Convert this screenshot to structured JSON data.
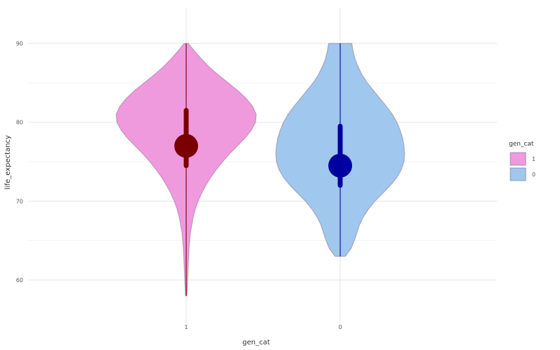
{
  "chart_data": {
    "type": "violin",
    "xlabel": "gen_cat",
    "ylabel": "life_expectancy",
    "categories": [
      "1",
      "0"
    ],
    "y_ticks": [
      60,
      70,
      80,
      90
    ],
    "ylim": [
      57,
      93
    ],
    "grid": true,
    "legend": {
      "title": "gen_cat",
      "position": "right",
      "entries": [
        "1",
        "0"
      ]
    },
    "series": [
      {
        "category": "1",
        "fill": "#f09ade",
        "point_color": "#7a0000",
        "max": 90,
        "min": 58,
        "point": 77,
        "interval": [
          74.5,
          81.5
        ],
        "density_half_width": [
          [
            90,
            0.03
          ],
          [
            89,
            0.12
          ],
          [
            88,
            0.22
          ],
          [
            87,
            0.33
          ],
          [
            86,
            0.46
          ],
          [
            85,
            0.6
          ],
          [
            84,
            0.74
          ],
          [
            83,
            0.86
          ],
          [
            82,
            0.95
          ],
          [
            81,
            1.0
          ],
          [
            80,
            0.99
          ],
          [
            79,
            0.93
          ],
          [
            78,
            0.84
          ],
          [
            77,
            0.73
          ],
          [
            76,
            0.62
          ],
          [
            75,
            0.52
          ],
          [
            74,
            0.43
          ],
          [
            73,
            0.35
          ],
          [
            72,
            0.28
          ],
          [
            71,
            0.22
          ],
          [
            70,
            0.17
          ],
          [
            69,
            0.13
          ],
          [
            68,
            0.1
          ],
          [
            67,
            0.08
          ],
          [
            66,
            0.06
          ],
          [
            65,
            0.05
          ],
          [
            64,
            0.04
          ],
          [
            63,
            0.035
          ],
          [
            62,
            0.03
          ],
          [
            61,
            0.025
          ],
          [
            60,
            0.02
          ],
          [
            59,
            0.015
          ],
          [
            58,
            0.01
          ]
        ]
      },
      {
        "category": "0",
        "fill": "#a0c8ee",
        "point_color": "#0000a0",
        "max": 90,
        "min": 63,
        "point": 74.5,
        "interval": [
          72,
          79.5
        ],
        "density_half_width": [
          [
            90,
            0.18
          ],
          [
            89,
            0.2
          ],
          [
            88,
            0.23
          ],
          [
            87,
            0.28
          ],
          [
            86,
            0.34
          ],
          [
            85,
            0.42
          ],
          [
            84,
            0.52
          ],
          [
            83,
            0.62
          ],
          [
            82,
            0.72
          ],
          [
            81,
            0.81
          ],
          [
            80,
            0.88
          ],
          [
            79,
            0.93
          ],
          [
            78,
            0.97
          ],
          [
            77,
            0.99
          ],
          [
            76,
            1.0
          ],
          [
            75,
            0.99
          ],
          [
            74,
            0.95
          ],
          [
            73,
            0.88
          ],
          [
            72,
            0.78
          ],
          [
            71,
            0.66
          ],
          [
            70,
            0.54
          ],
          [
            69,
            0.44
          ],
          [
            68,
            0.36
          ],
          [
            67,
            0.3
          ],
          [
            66,
            0.26
          ],
          [
            65,
            0.22
          ],
          [
            64,
            0.17
          ],
          [
            63,
            0.08
          ]
        ]
      }
    ]
  }
}
